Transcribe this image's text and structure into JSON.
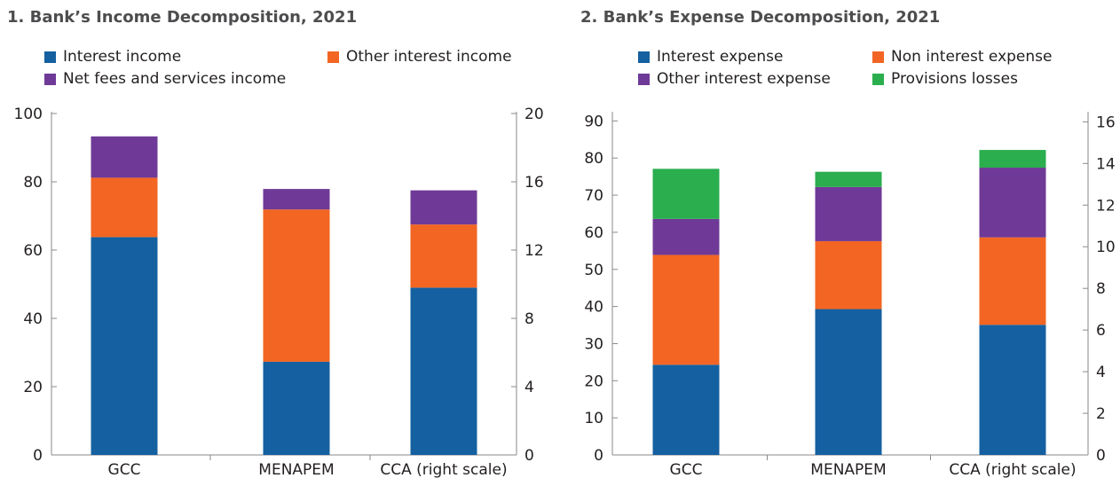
{
  "chart_data": [
    {
      "type": "bar",
      "stacked": true,
      "title": "1. Bank’s Income Decomposition, 2021",
      "categories": [
        "GCC",
        "MENAPEM",
        "CCA (right scale)"
      ],
      "axes": {
        "left": {
          "ylim": [
            0,
            100
          ],
          "ticks": [
            0,
            20,
            40,
            60,
            80,
            100
          ]
        },
        "right": {
          "ylim": [
            0,
            20
          ],
          "ticks": [
            0,
            4,
            8,
            12,
            16,
            20
          ]
        }
      },
      "category_axis": [
        "left",
        "left",
        "right"
      ],
      "series": [
        {
          "name": "Interest income",
          "color": "#1560a0",
          "values": [
            63.8,
            27.3,
            9.8
          ]
        },
        {
          "name": "Other interest income",
          "color": "#f26522",
          "values": [
            17.4,
            44.6,
            3.7
          ]
        },
        {
          "name": "Net fees and services income",
          "color": "#6f3a97",
          "values": [
            12.1,
            6.0,
            2.0
          ]
        }
      ],
      "legend": {
        "placement": "top-left",
        "columns": 2
      }
    },
    {
      "type": "bar",
      "stacked": true,
      "title": "2. Bank’s Expense Decomposition, 2021",
      "categories": [
        "GCC",
        "MENAPEM",
        "CCA (right scale)"
      ],
      "axes": {
        "left": {
          "ylim": [
            0,
            92
          ],
          "ticks": [
            0,
            10,
            20,
            30,
            40,
            50,
            60,
            70,
            80,
            90
          ]
        },
        "right": {
          "ylim": [
            0,
            16.4
          ],
          "ticks": [
            0,
            2,
            4,
            6,
            8,
            10,
            12,
            14,
            16
          ]
        }
      },
      "category_axis": [
        "left",
        "left",
        "right"
      ],
      "series": [
        {
          "name": "Interest expense",
          "color": "#1560a0",
          "values": [
            24.3,
            39.3,
            6.25
          ]
        },
        {
          "name": "Non interest expense",
          "color": "#f26522",
          "values": [
            29.6,
            18.3,
            4.2
          ]
        },
        {
          "name": "Other interest expense",
          "color": "#6f3a97",
          "values": [
            9.7,
            14.6,
            3.35
          ]
        },
        {
          "name": "Provisions losses",
          "color": "#2bae4e",
          "values": [
            13.5,
            4.1,
            0.85
          ]
        }
      ],
      "legend": {
        "placement": "top-center",
        "columns": 2
      }
    }
  ]
}
